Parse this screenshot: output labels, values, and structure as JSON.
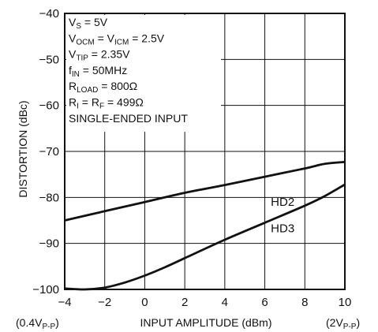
{
  "chart_data": {
    "type": "line",
    "xlabel": "INPUT AMPLITUDE (dBm)",
    "ylabel": "DISTORTION (dBc)",
    "xlim": [
      -4,
      10
    ],
    "ylim": [
      -100,
      -40
    ],
    "x_ticks": [
      "−4",
      "−2",
      "0",
      "2",
      "4",
      "6",
      "8",
      "10"
    ],
    "y_ticks": [
      "−40",
      "−50",
      "−60",
      "−70",
      "−80",
      "−90",
      "−100"
    ],
    "x_extra_labels": {
      "left": {
        "main": "(0.4V",
        "sub": "P-P",
        "close": ")"
      },
      "right": {
        "main": "(2V",
        "sub": "P-P",
        "close": ")"
      }
    },
    "grid": true,
    "conditions": [
      {
        "main": "V",
        "sub": "S",
        "rest": " = 5V"
      },
      {
        "main": "V",
        "sub": "OCM",
        "rest": " = V",
        "sub2": "ICM",
        "rest2": " = 2.5V"
      },
      {
        "main": "V",
        "sub": "TIP",
        "rest": " = 2.35V"
      },
      {
        "main": "f",
        "sub": "IN",
        "rest": " = 50MHz"
      },
      {
        "main": "R",
        "sub": "LOAD",
        "rest": " = 800Ω"
      },
      {
        "main": "R",
        "sub": "I",
        "rest": " = R",
        "sub2": "F",
        "rest2": " = 499Ω"
      },
      {
        "main": "SINGLE-ENDED INPUT",
        "sub": "",
        "rest": ""
      }
    ],
    "series": [
      {
        "name": "HD2",
        "x": [
          -4,
          -2,
          0,
          2,
          4,
          6,
          8,
          9,
          10
        ],
        "y": [
          -85,
          -83,
          -81,
          -79,
          -77.3,
          -75.5,
          -73.7,
          -72.7,
          -72.3
        ]
      },
      {
        "name": "HD3",
        "x": [
          -4,
          -3,
          -2,
          -1,
          0,
          1,
          2,
          4,
          6,
          8,
          9,
          10
        ],
        "y": [
          -99.8,
          -100,
          -99.6,
          -98.5,
          -97,
          -95.2,
          -93.2,
          -89.2,
          -85.5,
          -81.8,
          -79.7,
          -77.2
        ]
      }
    ]
  }
}
